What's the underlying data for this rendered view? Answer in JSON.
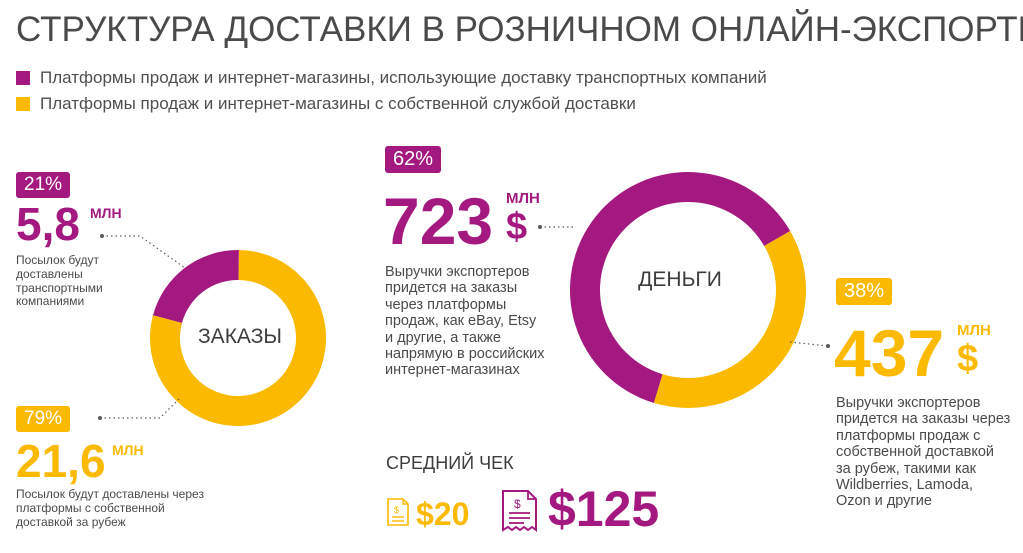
{
  "title": "СТРУКТУРА ДОСТАВКИ В РОЗНИЧНОМ ОНЛАЙН-ЭКСПОРТЕ",
  "legend": [
    {
      "label": "Платформы продаж и интернет-магазины, использующие доставку транспортных компаний",
      "color": "#a3197f"
    },
    {
      "label": "Платформы продаж и интернет-магазины с собственной службой доставки",
      "color": "#fbb900"
    }
  ],
  "orders": {
    "center_label": "ЗАКАЗЫ",
    "transport": {
      "pct": "21%",
      "value": "5,8",
      "unit": "МЛН",
      "desc": "Посылок будут доставлены транспортными компаниями"
    },
    "own": {
      "pct": "79%",
      "value": "21,6",
      "unit": "МЛН",
      "desc": "Посылок будут доставлены через платформы с собственной доставкой за рубеж"
    }
  },
  "money": {
    "center_label": "ДЕНЬГИ",
    "transport": {
      "pct": "62%",
      "value": "723",
      "unit": "МЛН",
      "currency": "$",
      "desc": "Выручки экспортеров придется на заказы через платформы продаж, как eBay, Etsy и другие, а также напрямую в российских интернет-магазинах"
    },
    "own": {
      "pct": "38%",
      "value": "437",
      "unit": "МЛН",
      "currency": "$",
      "desc": "Выручки экспортеров придется на заказы через платформы продаж с собственной доставкой за рубеж, такими как Wildberries, Lamoda, Ozon и другие"
    }
  },
  "avg_check": {
    "label": "СРЕДНИЙ ЧЕК",
    "own_value": "$20",
    "transport_value": "$125",
    "icon": "receipt-icon"
  },
  "chart_data": [
    {
      "type": "pie",
      "title": "ЗАКАЗЫ",
      "categories": [
        "Платформы продаж и интернет-магазины, использующие доставку транспортных компаний",
        "Платформы продаж и интернет-магазины с собственной службой доставки"
      ],
      "values": [
        21,
        79
      ],
      "absolute_values_mln_parcels": [
        5.8,
        21.6
      ],
      "colors": [
        "#a3197f",
        "#fbb900"
      ],
      "donut": true
    },
    {
      "type": "pie",
      "title": "ДЕНЬГИ",
      "categories": [
        "Платформы продаж и интернет-магазины, использующие доставку транспортных компаний",
        "Платформы продаж и интернет-магазины с собственной службой доставки"
      ],
      "values": [
        62,
        38
      ],
      "absolute_values_mln_usd": [
        723,
        437
      ],
      "colors": [
        "#a3197f",
        "#fbb900"
      ],
      "donut": true
    }
  ]
}
